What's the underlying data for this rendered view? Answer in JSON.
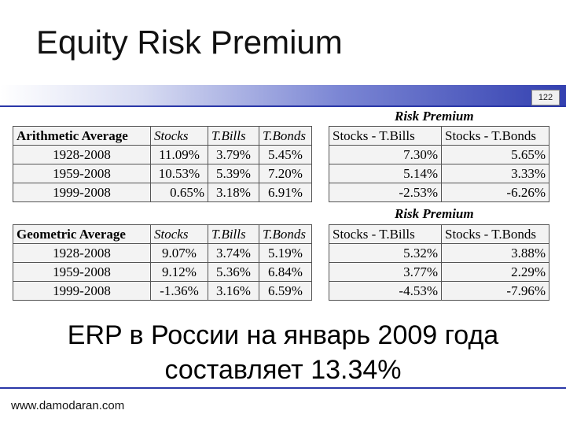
{
  "slide": {
    "title": "Equity Risk Premium",
    "number": "122",
    "footer": "www.damodaran.com",
    "erp_line1": "ERP в России на январь 2009 года",
    "erp_line2": "составляет 13.34%"
  },
  "arith": {
    "header": [
      "Arithmetic Average",
      "Stocks",
      "T.Bills",
      "T.Bonds"
    ],
    "rows": [
      [
        "1928-2008",
        "11.09%",
        "3.79%",
        "5.45%"
      ],
      [
        "1959-2008",
        "10.53%",
        "5.39%",
        "7.20%"
      ],
      [
        "1999-2008",
        "0.65%",
        "3.18%",
        "6.91%"
      ]
    ]
  },
  "geom": {
    "header": [
      "Geometric Average",
      "Stocks",
      "T.Bills",
      "T.Bonds"
    ],
    "rows": [
      [
        "1928-2008",
        "9.07%",
        "3.74%",
        "5.19%"
      ],
      [
        "1959-2008",
        "9.12%",
        "5.36%",
        "6.84%"
      ],
      [
        "1999-2008",
        "-1.36%",
        "3.16%",
        "6.59%"
      ]
    ]
  },
  "risk_arith": {
    "title": "Risk Premium",
    "header": [
      "Stocks - T.Bills",
      "Stocks - T.Bonds"
    ],
    "rows": [
      [
        "7.30%",
        "5.65%"
      ],
      [
        "5.14%",
        "3.33%"
      ],
      [
        "-2.53%",
        "-6.26%"
      ]
    ]
  },
  "risk_geom": {
    "title": "Risk Premium",
    "header": [
      "Stocks - T.Bills",
      "Stocks - T.Bonds"
    ],
    "rows": [
      [
        "5.32%",
        "3.88%"
      ],
      [
        "3.77%",
        "2.29%"
      ],
      [
        "-4.53%",
        "-7.96%"
      ]
    ]
  }
}
